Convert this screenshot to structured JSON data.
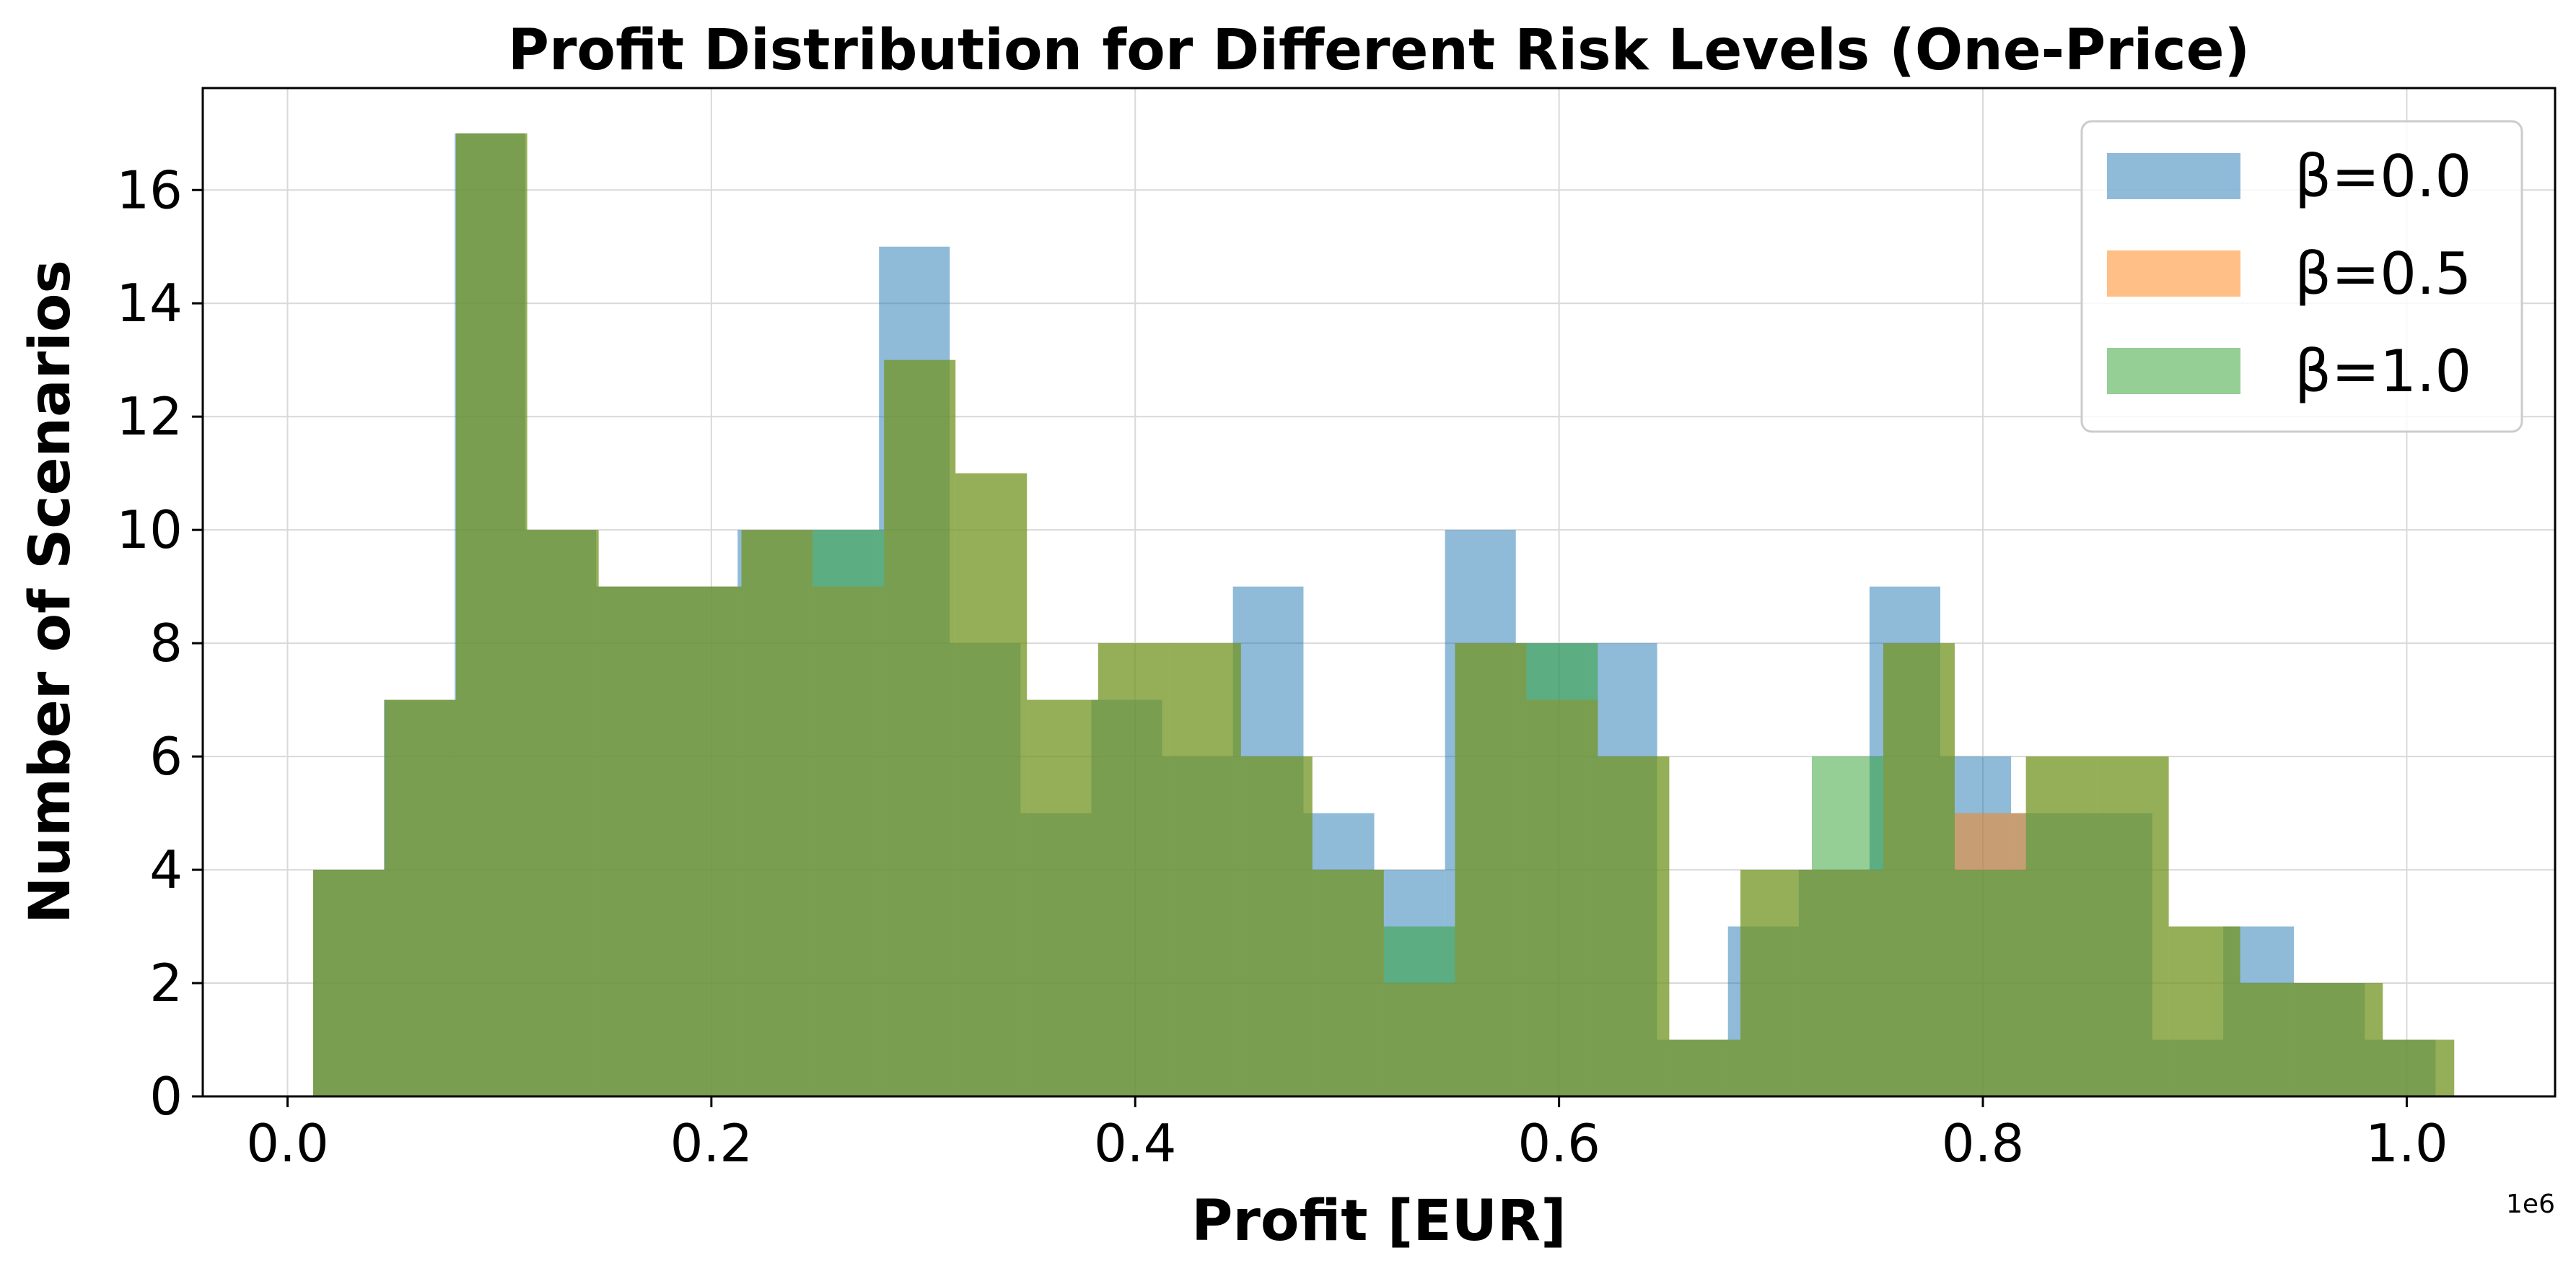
{
  "chart_data": {
    "type": "bar",
    "title": "Profit Distribution for Different Risk Levels (One-Price)",
    "xlabel": "Profit [EUR]",
    "ylabel": "Number of Scenarios",
    "x_offset_label": "1e6",
    "xlim": [
      -0.04,
      1.07
    ],
    "ylim": [
      0,
      17.8
    ],
    "xticks": [
      0.0,
      0.2,
      0.4,
      0.6,
      0.8,
      1.0
    ],
    "xtick_labels": [
      "0.0",
      "0.2",
      "0.4",
      "0.6",
      "0.8",
      "1.0"
    ],
    "yticks": [
      0,
      2,
      4,
      6,
      8,
      10,
      12,
      14,
      16
    ],
    "ytick_labels": [
      "0",
      "2",
      "4",
      "6",
      "8",
      "10",
      "12",
      "14",
      "16"
    ],
    "grid": true,
    "legend_position": "top-right",
    "bar_alpha": 0.5,
    "series": [
      {
        "name": "β=0.0",
        "color": "#1f77b4",
        "bin_edges": [
          0.0121,
          0.0455,
          0.0789,
          0.1122,
          0.1456,
          0.179,
          0.2124,
          0.2458,
          0.2791,
          0.3125,
          0.3459,
          0.3793,
          0.4127,
          0.4461,
          0.4794,
          0.5128,
          0.5462,
          0.5796,
          0.613,
          0.6463,
          0.6797,
          0.7131,
          0.7465,
          0.7799,
          0.8133,
          0.8466,
          0.88,
          0.9134,
          0.9468,
          0.9802,
          1.0136
        ],
        "counts": [
          4,
          7,
          17,
          10,
          9,
          9,
          10,
          10,
          15,
          8,
          5,
          7,
          6,
          9,
          5,
          4,
          10,
          8,
          8,
          1,
          3,
          4,
          9,
          6,
          5,
          5,
          1,
          3,
          2,
          1
        ]
      },
      {
        "name": "β=0.5",
        "color": "#ff7f0e",
        "bin_edges": [
          0.0121,
          0.0458,
          0.0795,
          0.1131,
          0.1468,
          0.1805,
          0.2142,
          0.2478,
          0.2815,
          0.3152,
          0.3489,
          0.3825,
          0.4162,
          0.4499,
          0.4836,
          0.5173,
          0.5509,
          0.5846,
          0.6183,
          0.652,
          0.6856,
          0.7193,
          0.753,
          0.7867,
          0.8203,
          0.854,
          0.8877,
          0.9214,
          0.9551,
          0.9887,
          1.0224
        ],
        "counts": [
          4,
          7,
          17,
          10,
          9,
          9,
          10,
          9,
          13,
          11,
          7,
          8,
          8,
          6,
          4,
          2,
          8,
          7,
          6,
          1,
          4,
          4,
          8,
          5,
          6,
          6,
          3,
          2,
          2,
          1
        ]
      },
      {
        "name": "β=1.0",
        "color": "#2ca02c",
        "bin_edges": [
          0.0121,
          0.0458,
          0.0795,
          0.1131,
          0.1468,
          0.1805,
          0.2142,
          0.2478,
          0.2815,
          0.3152,
          0.3489,
          0.3825,
          0.4162,
          0.4499,
          0.4836,
          0.5173,
          0.5509,
          0.5846,
          0.6183,
          0.652,
          0.6856,
          0.7193,
          0.753,
          0.7867,
          0.8203,
          0.854,
          0.8877,
          0.9214,
          0.9551,
          0.9887,
          1.0224
        ],
        "counts": [
          4,
          7,
          17,
          10,
          9,
          9,
          10,
          10,
          13,
          11,
          7,
          8,
          8,
          6,
          4,
          3,
          8,
          8,
          6,
          1,
          4,
          6,
          8,
          4,
          6,
          6,
          3,
          2,
          2,
          1
        ]
      }
    ]
  }
}
